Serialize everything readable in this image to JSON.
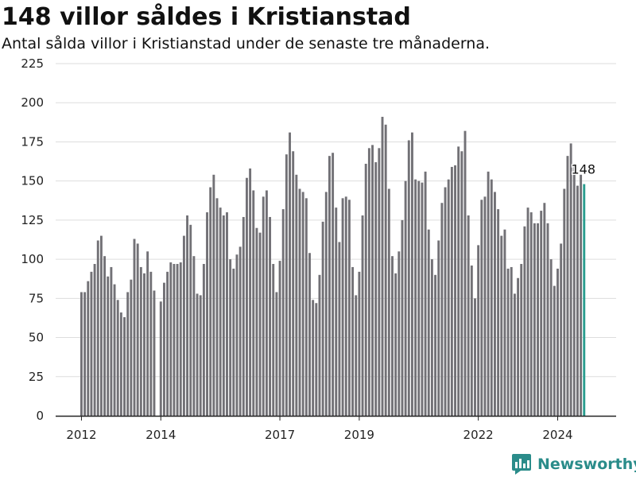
{
  "header": {
    "title": "148 villor såldes i Kristianstad",
    "subtitle": "Antal sålda villor i Kristianstad under de senaste tre månaderna."
  },
  "brand": {
    "name": "Newsworthy",
    "icon": "newsworthy-logo-icon"
  },
  "colors": {
    "bar": "#727176",
    "highlight": "#2a9d8f",
    "grid": "#dddddd",
    "axis": "#222222",
    "brand": "#2a8c8a"
  },
  "chart_data": {
    "type": "bar",
    "title": "",
    "xlabel": "",
    "ylabel": "",
    "ylim": [
      0,
      225
    ],
    "yticks": [
      "0",
      "25",
      "50",
      "75",
      "100",
      "125",
      "150",
      "175",
      "200",
      "225"
    ],
    "xticks": [
      "2012",
      "2014",
      "2017",
      "2019",
      "2022",
      "2024"
    ],
    "grid": true,
    "annotation": {
      "text": "148",
      "index": 152
    },
    "highlight_index": 152,
    "categories": [
      "2012-01",
      "2012-02",
      "2012-03",
      "2012-04",
      "2012-05",
      "2012-06",
      "2012-07",
      "2012-08",
      "2012-09",
      "2012-10",
      "2012-11",
      "2012-12",
      "2013-01",
      "2013-02",
      "2013-03",
      "2013-04",
      "2013-05",
      "2013-06",
      "2013-07",
      "2013-08",
      "2013-09",
      "2013-10",
      "2013-11",
      "2013-12",
      "2014-01",
      "2014-02",
      "2014-03",
      "2014-04",
      "2014-05",
      "2014-06",
      "2014-07",
      "2014-08",
      "2014-09",
      "2014-10",
      "2014-11",
      "2014-12",
      "2015-01",
      "2015-02",
      "2015-03",
      "2015-04",
      "2015-05",
      "2015-06",
      "2015-07",
      "2015-08",
      "2015-09",
      "2015-10",
      "2015-11",
      "2015-12",
      "2016-01",
      "2016-02",
      "2016-03",
      "2016-04",
      "2016-05",
      "2016-06",
      "2016-07",
      "2016-08",
      "2016-09",
      "2016-10",
      "2016-11",
      "2016-12",
      "2017-01",
      "2017-02",
      "2017-03",
      "2017-04",
      "2017-05",
      "2017-06",
      "2017-07",
      "2017-08",
      "2017-09",
      "2017-10",
      "2017-11",
      "2017-12",
      "2018-01",
      "2018-02",
      "2018-03",
      "2018-04",
      "2018-05",
      "2018-06",
      "2018-07",
      "2018-08",
      "2018-09",
      "2018-10",
      "2018-11",
      "2018-12",
      "2019-01",
      "2019-02",
      "2019-03",
      "2019-04",
      "2019-05",
      "2019-06",
      "2019-07",
      "2019-08",
      "2019-09",
      "2019-10",
      "2019-11",
      "2019-12",
      "2020-01",
      "2020-02",
      "2020-03",
      "2020-04",
      "2020-05",
      "2020-06",
      "2020-07",
      "2020-08",
      "2020-09",
      "2020-10",
      "2020-11",
      "2020-12",
      "2021-01",
      "2021-02",
      "2021-03",
      "2021-04",
      "2021-05",
      "2021-06",
      "2021-07",
      "2021-08",
      "2021-09",
      "2021-10",
      "2021-11",
      "2021-12",
      "2022-01",
      "2022-02",
      "2022-03",
      "2022-04",
      "2022-05",
      "2022-06",
      "2022-07",
      "2022-08",
      "2022-09",
      "2022-10",
      "2022-11",
      "2022-12",
      "2023-01",
      "2023-02",
      "2023-03",
      "2023-04",
      "2023-05",
      "2023-06",
      "2023-07",
      "2023-08",
      "2023-09",
      "2023-10",
      "2023-11",
      "2023-12",
      "2024-01",
      "2024-02",
      "2024-03",
      "2024-04",
      "2024-05",
      "2024-06",
      "2024-07",
      "2024-08",
      "2024-09"
    ],
    "values": [
      79,
      79,
      86,
      92,
      97,
      112,
      115,
      102,
      89,
      95,
      84,
      74,
      66,
      63,
      79,
      87,
      113,
      110,
      95,
      91,
      105,
      92,
      80,
      0,
      73,
      85,
      92,
      98,
      97,
      97,
      98,
      115,
      128,
      122,
      102,
      78,
      77,
      97,
      130,
      146,
      154,
      139,
      133,
      128,
      130,
      100,
      94,
      103,
      108,
      127,
      152,
      158,
      144,
      120,
      117,
      140,
      144,
      127,
      97,
      79,
      99,
      132,
      167,
      181,
      169,
      154,
      145,
      143,
      139,
      104,
      74,
      72,
      90,
      124,
      143,
      166,
      168,
      133,
      111,
      139,
      140,
      138,
      95,
      77,
      92,
      128,
      161,
      171,
      173,
      162,
      171,
      191,
      186,
      145,
      102,
      91,
      105,
      125,
      150,
      176,
      181,
      151,
      150,
      149,
      156,
      119,
      100,
      90,
      112,
      136,
      146,
      151,
      159,
      160,
      172,
      169,
      182,
      128,
      96,
      75,
      109,
      138,
      140,
      156,
      151,
      143,
      132,
      115,
      119,
      94,
      95,
      78,
      88,
      97,
      121,
      133,
      130,
      123,
      123,
      131,
      136,
      123,
      100,
      83,
      94,
      110,
      145,
      166,
      174,
      160,
      147,
      154,
      148
    ]
  }
}
